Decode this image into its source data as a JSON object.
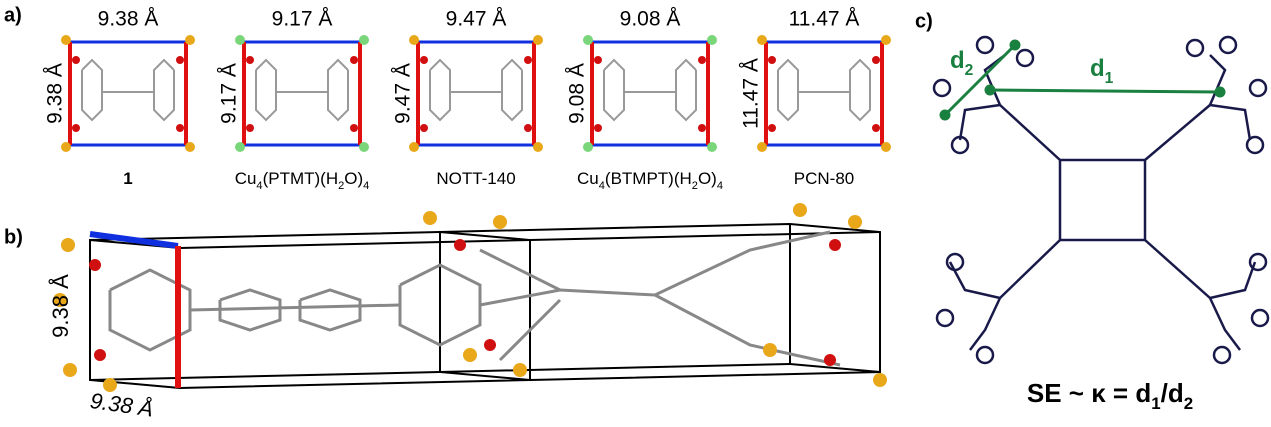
{
  "panels": {
    "a": "a)",
    "b": "b)",
    "c": "c)"
  },
  "panel_a": {
    "frameworks": [
      {
        "top": "9.38 Å",
        "side": "9.38 Å",
        "name_parts": [
          "1"
        ]
      },
      {
        "top": "9.17 Å",
        "side": "9.17 Å",
        "name_parts": [
          "Cu",
          "4",
          "(PTMT)(H",
          "2",
          "O)",
          "4"
        ]
      },
      {
        "top": "9.47 Å",
        "side": "9.47 Å",
        "name_parts": [
          "NOTT-140"
        ]
      },
      {
        "top": "9.08 Å",
        "side": "9.08 Å",
        "name_parts": [
          "Cu",
          "4",
          "(BTMPT)(H",
          "2",
          "O)",
          "4"
        ]
      },
      {
        "top": "11.47 Å",
        "side": "11.47 Å",
        "name_parts": [
          "PCN-80"
        ]
      }
    ]
  },
  "panel_b": {
    "side": "9.38 Å",
    "bottom": "9.38 Å"
  },
  "panel_c": {
    "d2_parts": [
      "d",
      "2"
    ],
    "d1_parts": [
      "d",
      "1"
    ],
    "equation_parts": [
      "SE ~ κ = d",
      "1",
      "/d",
      "2"
    ]
  }
}
